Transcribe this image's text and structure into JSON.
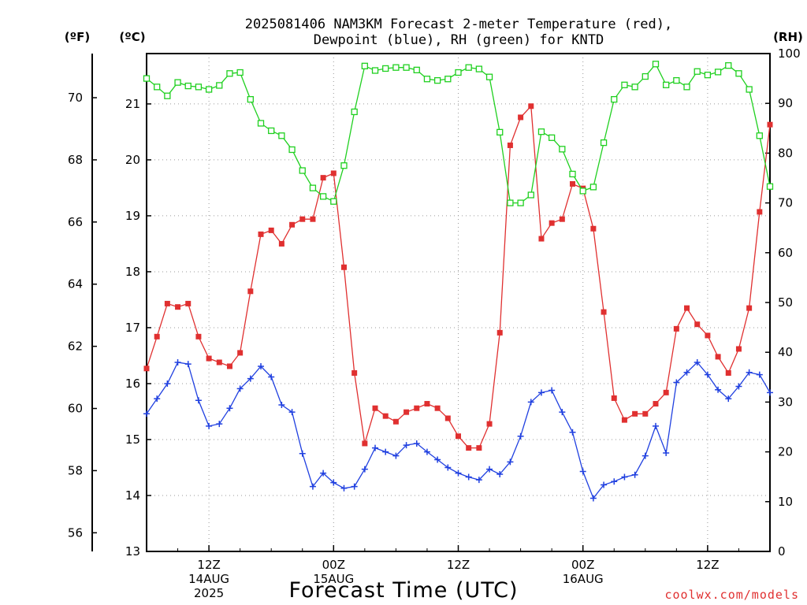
{
  "chart_data": {
    "type": "line",
    "title_line1": "2025081406 NAM3KM Forecast 2-meter Temperature (red),",
    "title_line2": "Dewpoint (blue), RH (green) for KNTD",
    "xlabel": "Forecast Time (UTC)",
    "credit": "coolwx.com/models",
    "units": {
      "fahrenheit": "(ºF)",
      "celsius": "(ºC)",
      "rh": "(RH)"
    },
    "axes": {
      "celsius": {
        "min": 13,
        "max": 21.9,
        "ticks": [
          "13",
          "14",
          "15",
          "16",
          "17",
          "18",
          "19",
          "20",
          "21"
        ]
      },
      "fahrenheit": {
        "ticks": [
          "56",
          "58",
          "60",
          "62",
          "64",
          "66",
          "68",
          "70"
        ]
      },
      "rh": {
        "min": 0,
        "max": 100,
        "ticks": [
          "0",
          "10",
          "20",
          "30",
          "40",
          "50",
          "60",
          "70",
          "80",
          "90",
          "100"
        ]
      },
      "x": {
        "start_hour": 6,
        "end_hour": 66,
        "step_hours": 1,
        "ticks": [
          {
            "hour": 12,
            "lines": [
              "12Z",
              "14AUG",
              "2025"
            ]
          },
          {
            "hour": 24,
            "lines": [
              "00Z",
              "15AUG"
            ]
          },
          {
            "hour": 36,
            "lines": [
              "12Z"
            ]
          },
          {
            "hour": 48,
            "lines": [
              "00Z",
              "16AUG"
            ]
          },
          {
            "hour": 60,
            "lines": [
              "12Z"
            ]
          }
        ]
      }
    },
    "grid": true,
    "colors": {
      "temperature": "#e03030",
      "dewpoint": "#2040e0",
      "rh": "#20d020"
    },
    "series": [
      {
        "name": "Temperature (red)",
        "unit": "°C",
        "values": [
          16.27,
          16.84,
          17.43,
          17.37,
          17.43,
          16.84,
          16.45,
          16.38,
          16.31,
          16.55,
          17.65,
          18.67,
          18.74,
          18.5,
          18.84,
          18.94,
          18.94,
          19.68,
          19.76,
          18.08,
          16.19,
          14.93,
          15.56,
          15.42,
          15.32,
          15.49,
          15.56,
          15.64,
          15.56,
          15.38,
          15.06,
          14.85,
          14.85,
          15.28,
          16.91,
          20.26,
          20.76,
          20.96,
          18.59,
          18.87,
          18.94,
          19.57,
          19.49,
          18.77,
          17.28,
          15.74,
          15.35,
          15.46,
          15.46,
          15.64,
          15.84,
          16.98,
          17.35,
          17.06,
          16.86,
          16.48,
          16.19,
          16.62,
          17.35,
          19.07,
          20.63
        ]
      },
      {
        "name": "Dewpoint (blue)",
        "unit": "°C",
        "values": [
          15.46,
          15.73,
          16.0,
          16.38,
          16.35,
          15.7,
          15.24,
          15.28,
          15.56,
          15.91,
          16.09,
          16.31,
          16.12,
          15.62,
          15.49,
          14.75,
          14.16,
          14.4,
          14.23,
          14.13,
          14.16,
          14.47,
          14.85,
          14.78,
          14.71,
          14.9,
          14.93,
          14.78,
          14.64,
          14.5,
          14.4,
          14.33,
          14.28,
          14.47,
          14.38,
          14.6,
          15.06,
          15.67,
          15.84,
          15.88,
          15.49,
          15.13,
          14.43,
          13.95,
          14.19,
          14.25,
          14.33,
          14.37,
          14.71,
          15.24,
          14.76,
          16.02,
          16.2,
          16.38,
          16.16,
          15.89,
          15.73,
          15.95,
          16.2,
          16.16,
          15.84
        ]
      },
      {
        "name": "RH (green)",
        "unit": "%",
        "values": [
          95,
          93.3,
          91.5,
          94.2,
          93.5,
          93.3,
          92.8,
          93.6,
          96,
          96.2,
          90.8,
          86,
          84.5,
          83.5,
          80.7,
          76.5,
          73,
          71.3,
          70.3,
          77.5,
          88.3,
          97.5,
          96.6,
          97,
          97.2,
          97.2,
          96.7,
          94.9,
          94.6,
          94.9,
          96.2,
          97.2,
          96.9,
          95.3,
          84.2,
          70,
          70,
          71.6,
          84.3,
          83.1,
          80.8,
          75.8,
          72.4,
          73.2,
          82.1,
          90.8,
          93.7,
          93.3,
          95.4,
          97.9,
          93.7,
          94.6,
          93.3,
          96.4,
          95.7,
          96.3,
          97.6,
          96,
          92.8,
          83.5,
          73.3
        ]
      }
    ]
  }
}
